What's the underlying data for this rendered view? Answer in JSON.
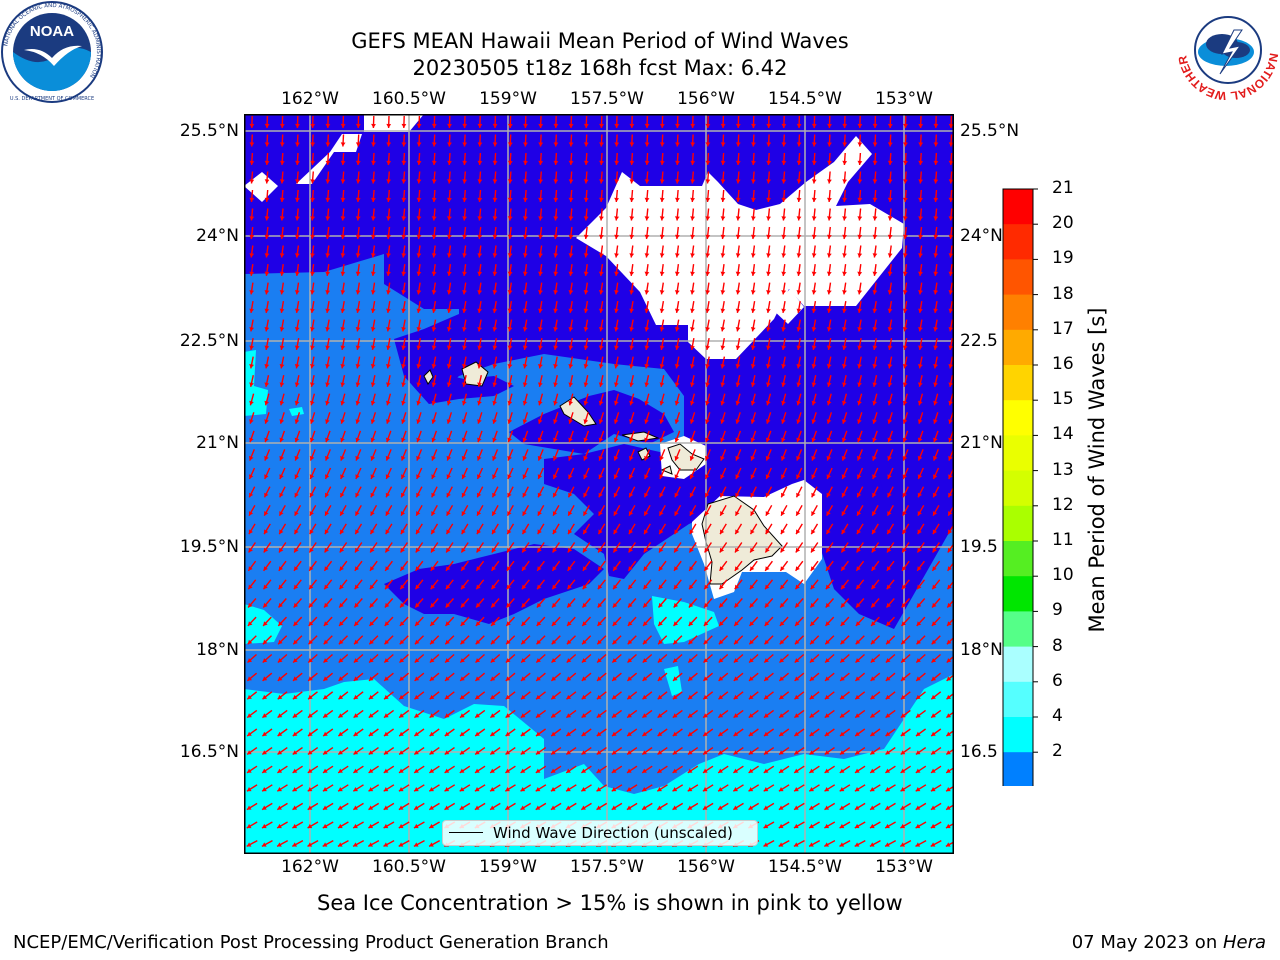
{
  "header": {
    "title_line1": "GEFS MEAN Hawaii Mean Period of Wind Waves",
    "title_line2": "20230505 t18z 168h fcst   Max: 6.42"
  },
  "logos": {
    "noaa_text": "NOAA",
    "noaa_ring_text": "NATIONAL OCEANIC AND ATMOSPHERIC ADMINISTRATION",
    "noaa_dept_text": "U.S. DEPARTMENT OF COMMERCE",
    "nws_ring_text": "NATIONAL WEATHER SERVICE"
  },
  "map": {
    "lon_labels": [
      "162°W",
      "160.5°W",
      "159°W",
      "157.5°W",
      "156°W",
      "154.5°W",
      "153°W"
    ],
    "lat_labels_left": [
      "25.5°N",
      "24°N",
      "22.5°N",
      "21°N",
      "19.5°N",
      "18°N",
      "16.5°N"
    ],
    "lat_labels_right": [
      "25.5°N",
      "24°N",
      "22.5",
      "21°N",
      "19.5",
      "18°N",
      "16.5"
    ],
    "legend_label": "Wind Wave Direction (unscaled)",
    "colors": {
      "ocean_low": "#1f00e6",
      "ocean_mid": "#1a7ef2",
      "ocean_high": "#00ffff",
      "land": "#efebd8",
      "arrow": "#ff0000",
      "grid": "#b0b0b0"
    }
  },
  "colorbar": {
    "label": "Mean Period of Wind Waves [s]",
    "ticks": [
      "21",
      "20",
      "19",
      "18",
      "17",
      "16",
      "15",
      "14",
      "13",
      "12",
      "11",
      "10",
      "9",
      "8",
      "6",
      "4",
      "2"
    ],
    "colors": [
      "#ff0000",
      "#ff2a00",
      "#ff5500",
      "#ff8000",
      "#ffaa00",
      "#ffd400",
      "#ffff00",
      "#eaff00",
      "#d4ff00",
      "#aaff00",
      "#55ee22",
      "#00e600",
      "#55ff88",
      "#aaffff",
      "#55ffff",
      "#00ffff",
      "#0080ff"
    ],
    "under_color": "#0000ff"
  },
  "caption": "Sea Ice Concentration > 15% is shown in pink to yellow",
  "footer": {
    "left": "NCEP/EMC/Verification Post Processing Product Generation Branch",
    "right_date": "07 May 2023 on ",
    "right_host": "Hera"
  }
}
